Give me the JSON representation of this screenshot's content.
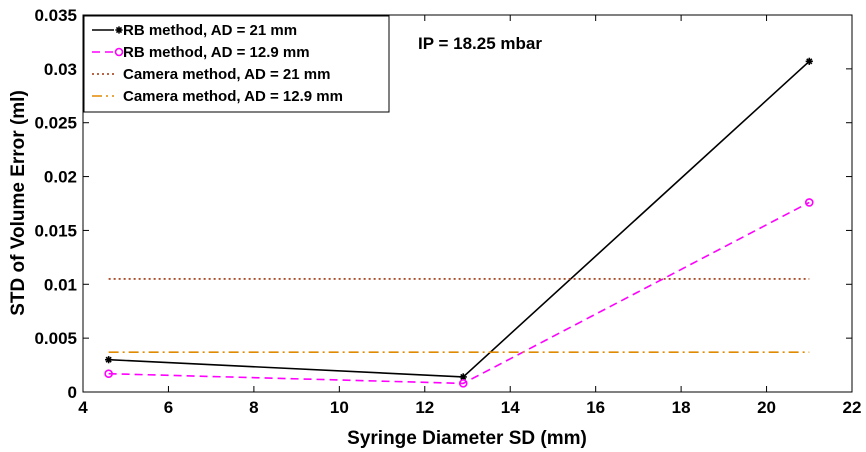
{
  "chart_data": {
    "type": "line",
    "xlabel": "Syringe Diameter SD (mm)",
    "ylabel": "STD of Volume Error (ml)",
    "xlim": [
      4,
      22
    ],
    "ylim": [
      0,
      0.035
    ],
    "xticks": [
      "4",
      "6",
      "8",
      "10",
      "12",
      "14",
      "16",
      "18",
      "20",
      "22"
    ],
    "yticks": [
      "0",
      "0.005",
      "0.01",
      "0.015",
      "0.02",
      "0.025",
      "0.03",
      "0.035"
    ],
    "annotation": "IP = 18.25 mbar",
    "grid": false,
    "legend_position": "top-left",
    "series": [
      {
        "name": "RB method, AD = 21 mm",
        "x": [
          4.6,
          12.9,
          21
        ],
        "y": [
          0.003,
          0.0014,
          0.0307
        ],
        "color": "#000000",
        "style": "solid",
        "marker": "asterisk"
      },
      {
        "name": "RB method, AD = 12.9 mm",
        "x": [
          4.6,
          12.9,
          21
        ],
        "y": [
          0.0017,
          0.0008,
          0.0176
        ],
        "color": "#ff00ff",
        "style": "dashed",
        "marker": "circle"
      },
      {
        "name": "Camera method, AD = 21 mm",
        "x": [
          4.6,
          21
        ],
        "y": [
          0.0105,
          0.0105
        ],
        "color": "#a0320a",
        "style": "dotted",
        "marker": "none"
      },
      {
        "name": "Camera method, AD = 12.9 mm",
        "x": [
          4.6,
          21
        ],
        "y": [
          0.0037,
          0.0037
        ],
        "color": "#e08a00",
        "style": "dashdot",
        "marker": "none"
      }
    ]
  }
}
